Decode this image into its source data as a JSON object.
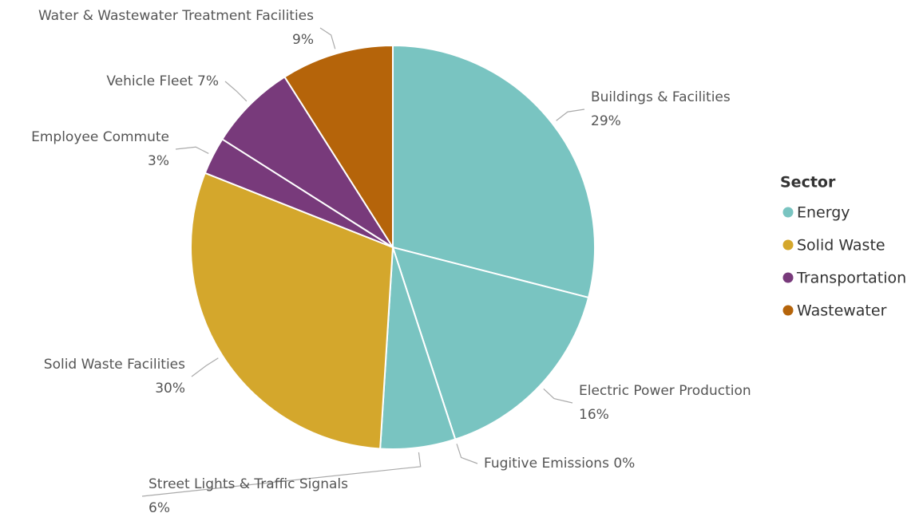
{
  "chart_data": {
    "type": "pie",
    "categories": [
      "Buildings & Facilities",
      "Electric Power Production",
      "Fugitive Emissions",
      "Street Lights & Traffic Signals",
      "Solid Waste Facilities",
      "Employee Commute",
      "Vehicle Fleet",
      "Water & Wastewater Treatment Facilities"
    ],
    "values": [
      29,
      16,
      0,
      6,
      30,
      3,
      7,
      9
    ],
    "value_labels": [
      "29%",
      "16%",
      "0%",
      "6%",
      "30%",
      "3%",
      "7%",
      "9%"
    ],
    "colors": [
      "#79c4c1",
      "#79c4c1",
      "#79c4c1",
      "#79c4c1",
      "#d4a72c",
      "#783a7b",
      "#783a7b",
      "#b5640a"
    ],
    "legend": {
      "title": "Sector",
      "position": "right",
      "items": [
        {
          "name": "Energy",
          "color": "#79c4c1"
        },
        {
          "name": "Solid Waste",
          "color": "#d4a72c"
        },
        {
          "name": "Transportation",
          "color": "#783a7b"
        },
        {
          "name": "Wastewater",
          "color": "#b5640a"
        }
      ]
    }
  }
}
